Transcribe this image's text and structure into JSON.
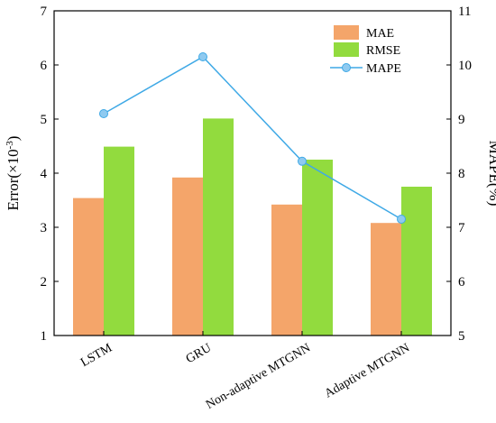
{
  "chart_data": {
    "type": "bar",
    "categories": [
      "LSTM",
      "GRU",
      "Non-adaptive MTGNN",
      "Adaptive MTGNN"
    ],
    "series": [
      {
        "name": "MAE",
        "kind": "bar",
        "axis": "left",
        "color": "#f4a56a",
        "values": [
          3.54,
          3.92,
          3.42,
          3.08
        ]
      },
      {
        "name": "RMSE",
        "kind": "bar",
        "axis": "left",
        "color": "#92db3e",
        "values": [
          4.49,
          5.01,
          4.25,
          3.75
        ]
      },
      {
        "name": "MAPE",
        "kind": "line",
        "axis": "right",
        "color": "#3fa9e6",
        "marker_color": "#8fcaf0",
        "values": [
          9.1,
          10.15,
          8.22,
          7.15
        ]
      }
    ],
    "ylabel_left": "Error(×10",
    "ylabel_left_exp": "-3",
    "ylabel_left_close": ")",
    "ylabel_right": "MAPE(%)",
    "ylim_left": [
      1,
      7
    ],
    "ylim_right": [
      5,
      11
    ],
    "yticks_left": [
      "1",
      "2",
      "3",
      "4",
      "5",
      "6",
      "7"
    ],
    "yticks_right": [
      "5",
      "6",
      "7",
      "8",
      "9",
      "10",
      "11"
    ],
    "legend": "top-right",
    "grid": false
  }
}
